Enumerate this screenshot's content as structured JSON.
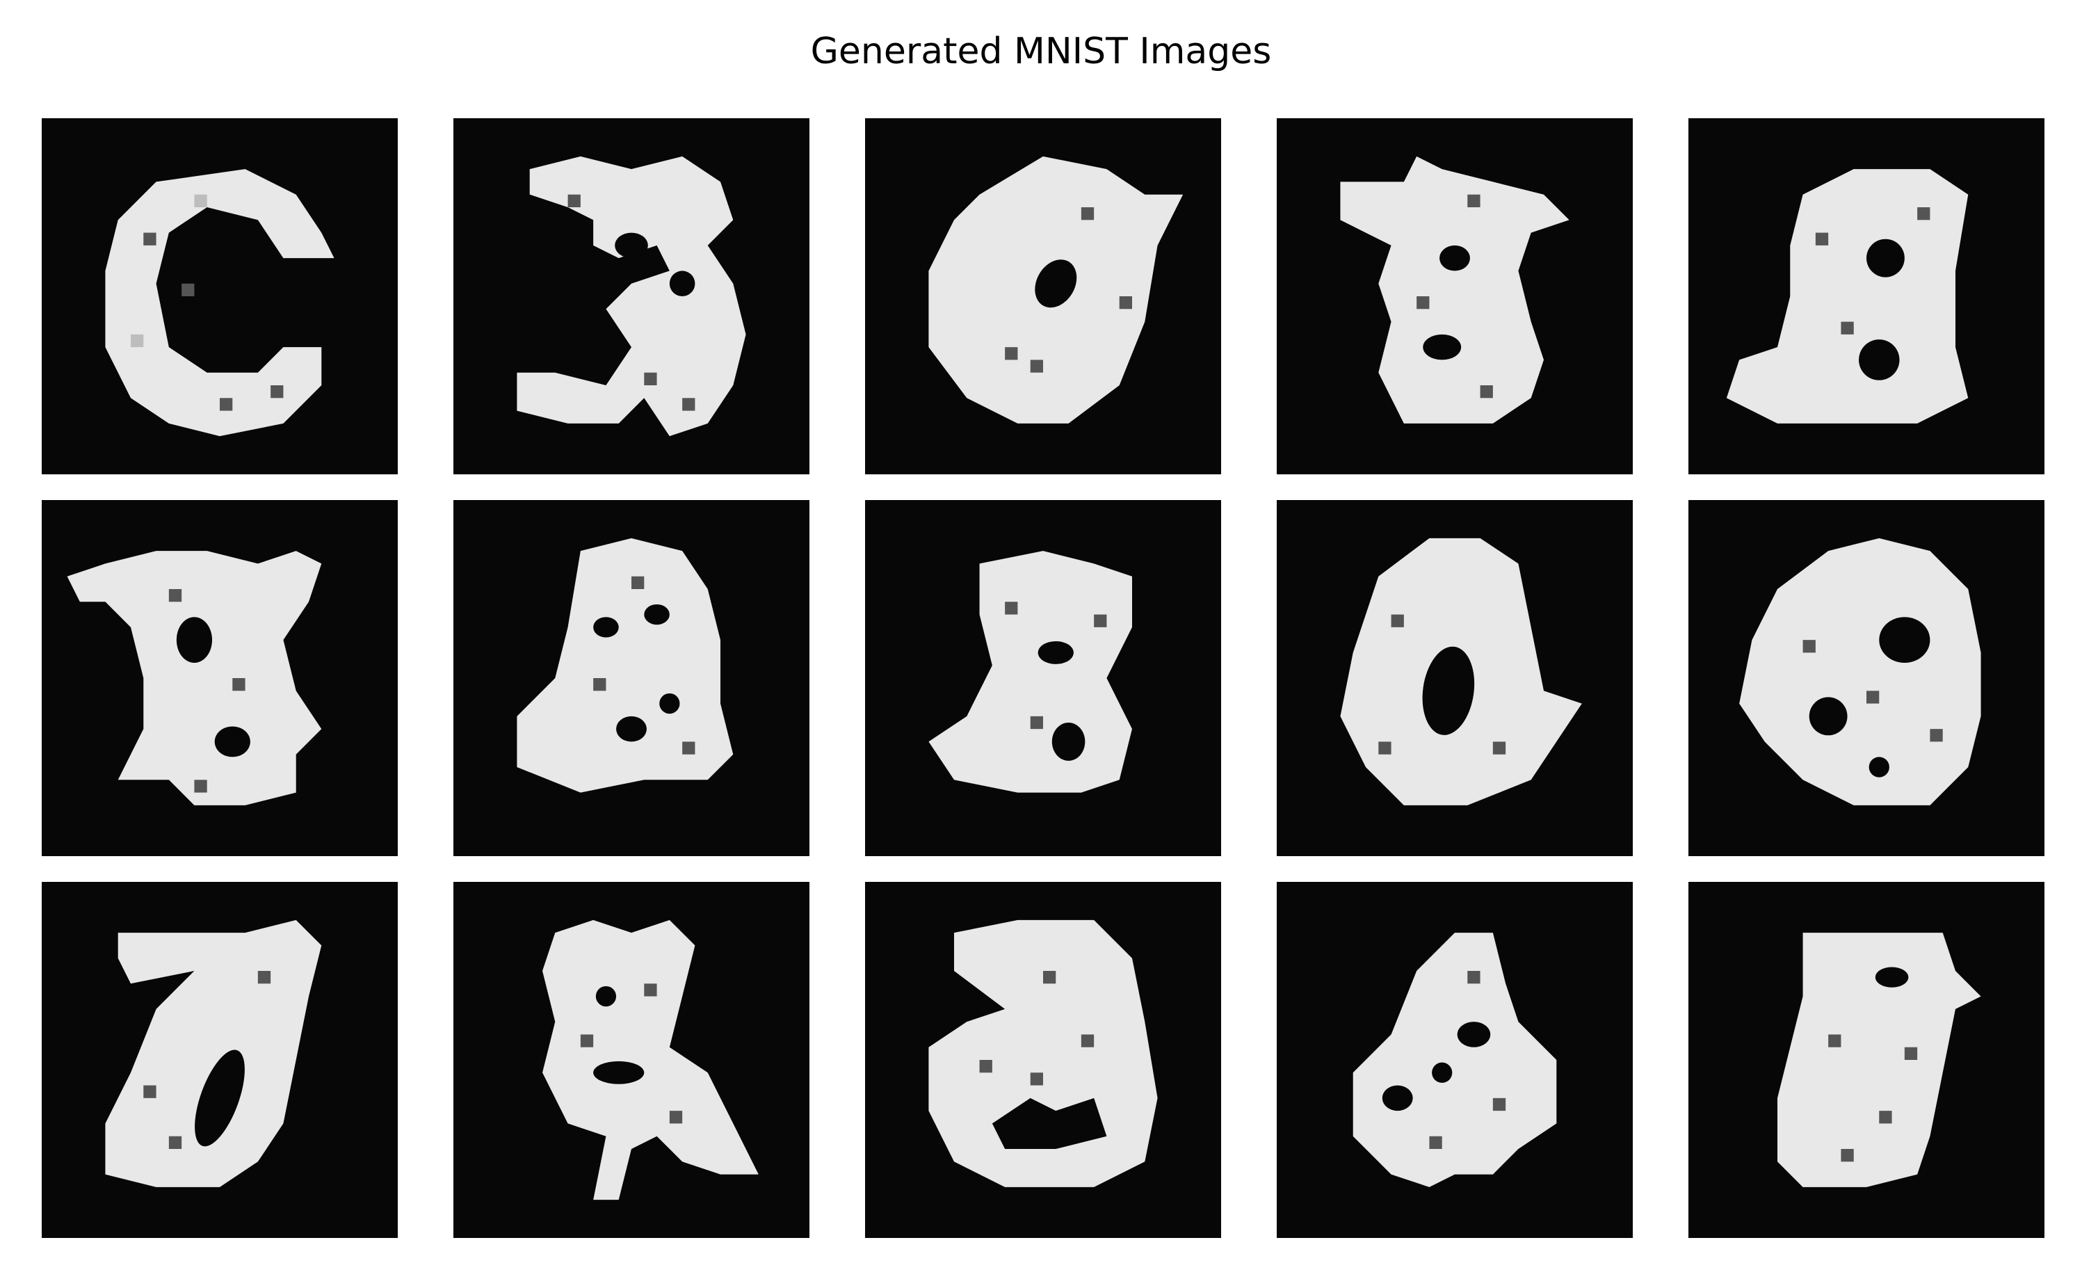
{
  "figure": {
    "title": "Generated MNIST Images"
  },
  "grid": {
    "rows": 3,
    "columns": 5,
    "image_resolution": [
      28,
      28
    ],
    "colormap": "gray",
    "axes_visible": false
  },
  "colors": {
    "background": "#ffffff",
    "tile_background": "#070707",
    "stroke": "#e8e8e8",
    "noise_dark": "#555555",
    "noise_light": "#bdbdbd"
  },
  "images": [
    {
      "row": 1,
      "col": 1,
      "shape": "open-zero"
    },
    {
      "row": 1,
      "col": 2,
      "shape": "three-like"
    },
    {
      "row": 1,
      "col": 3,
      "shape": "zero-blob"
    },
    {
      "row": 1,
      "col": 4,
      "shape": "eight-like"
    },
    {
      "row": 1,
      "col": 5,
      "shape": "eight-like"
    },
    {
      "row": 2,
      "col": 1,
      "shape": "eight-like"
    },
    {
      "row": 2,
      "col": 2,
      "shape": "eight-blob"
    },
    {
      "row": 2,
      "col": 3,
      "shape": "eight-like"
    },
    {
      "row": 2,
      "col": 4,
      "shape": "zero-blob"
    },
    {
      "row": 2,
      "col": 5,
      "shape": "eight-blob"
    },
    {
      "row": 3,
      "col": 1,
      "shape": "seven-zero"
    },
    {
      "row": 3,
      "col": 2,
      "shape": "four-like"
    },
    {
      "row": 3,
      "col": 3,
      "shape": "three-blob"
    },
    {
      "row": 3,
      "col": 4,
      "shape": "eight-blob"
    },
    {
      "row": 3,
      "col": 5,
      "shape": "eight-blob"
    }
  ]
}
